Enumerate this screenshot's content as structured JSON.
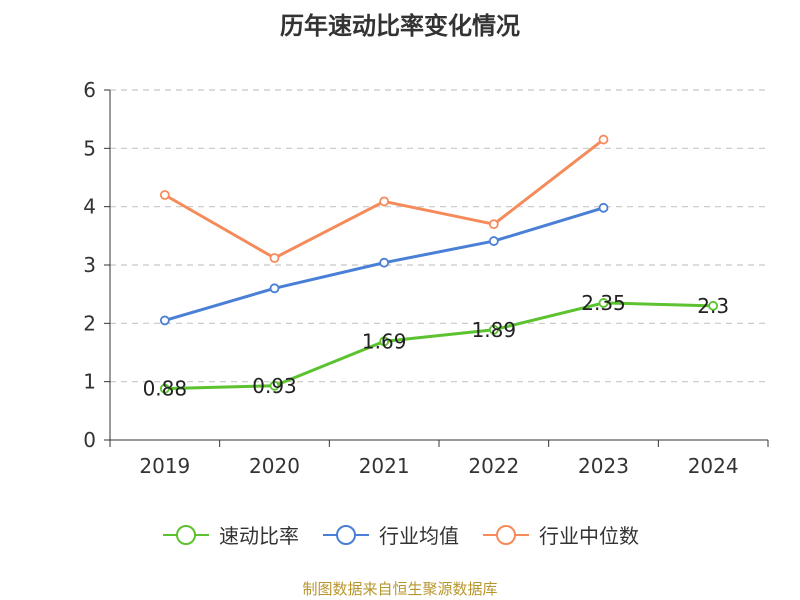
{
  "chart_data": {
    "type": "line",
    "title": "历年速动比率变化情况",
    "categories": [
      "2019",
      "2020",
      "2021",
      "2022",
      "2023",
      "2024"
    ],
    "ylim": [
      0,
      6
    ],
    "yticks": [
      0,
      1,
      2,
      3,
      4,
      5,
      6
    ],
    "grid": true,
    "legend_position": "bottom",
    "series": [
      {
        "name": "速动比率",
        "color": "#5cc22f",
        "values": [
          0.88,
          0.93,
          1.69,
          1.89,
          2.35,
          2.3
        ],
        "show_labels": true
      },
      {
        "name": "行业均值",
        "color": "#4a7fd6",
        "values": [
          2.05,
          2.6,
          3.04,
          3.41,
          3.98,
          null
        ],
        "show_labels": false
      },
      {
        "name": "行业中位数",
        "color": "#f58b5a",
        "values": [
          4.2,
          3.12,
          4.09,
          3.7,
          5.15,
          null
        ],
        "show_labels": false
      }
    ]
  },
  "source": "制图数据来自恒生聚源数据库"
}
